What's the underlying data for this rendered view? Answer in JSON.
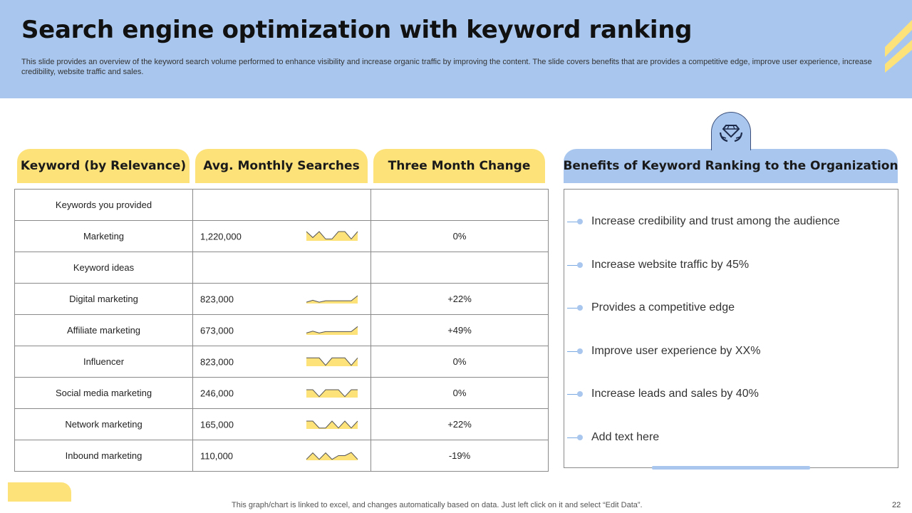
{
  "slide": {
    "title": "Search engine optimization with keyword ranking",
    "subtitle": "This slide provides an overview of the keyword search volume performed to enhance visibility and increase organic traffic by improving the content. The slide covers benefits that are provides a competitive edge, improve user experience, increase credibility, website traffic and sales.",
    "footer": "This graph/chart is linked to excel,  and changes automatically based on data. Just left click on it and select “Edit Data”.",
    "page_number": "22"
  },
  "colors": {
    "header_bg": "#a9c7ee",
    "accent_yellow": "#fde27a",
    "sparkline_fill": "#fde27a"
  },
  "table": {
    "headers": [
      "Keyword (by Relevance)",
      "Avg. Monthly Searches",
      "Three Month Change"
    ],
    "rows": [
      {
        "keyword": "Keywords you provided",
        "searches": "",
        "change": ""
      },
      {
        "keyword": "Marketing",
        "searches": "1,220,000",
        "change": "0%",
        "trend": [
          1,
          0.35,
          1,
          0.2,
          0.2,
          1,
          1,
          0.2,
          1
        ]
      },
      {
        "keyword": "Keyword ideas",
        "searches": "",
        "change": ""
      },
      {
        "keyword": "Digital marketing",
        "searches": "823,000",
        "change": "+22%",
        "trend": [
          0.15,
          0.35,
          0.15,
          0.3,
          0.3,
          0.3,
          0.3,
          0.3,
          0.85
        ]
      },
      {
        "keyword": "Affiliate marketing",
        "searches": "673,000",
        "change": "+49%",
        "trend": [
          0.2,
          0.4,
          0.2,
          0.35,
          0.35,
          0.35,
          0.35,
          0.35,
          0.9
        ]
      },
      {
        "keyword": "Influencer",
        "searches": "823,000",
        "change": "0%",
        "trend": [
          0.9,
          0.9,
          0.9,
          0.1,
          0.9,
          0.9,
          0.9,
          0.1,
          0.9
        ]
      },
      {
        "keyword": "Social media marketing",
        "searches": "246,000",
        "change": "0%",
        "trend": [
          0.85,
          0.85,
          0.1,
          0.85,
          0.85,
          0.85,
          0.1,
          0.85,
          0.85
        ]
      },
      {
        "keyword": "Network marketing",
        "searches": "165,000",
        "change": "+22%",
        "trend": [
          0.85,
          0.85,
          0.1,
          0.1,
          0.85,
          0.1,
          0.85,
          0.1,
          0.85
        ]
      },
      {
        "keyword": "Inbound marketing",
        "searches": "110,000",
        "change": "-19%",
        "trend": [
          0.1,
          0.8,
          0.1,
          0.8,
          0.1,
          0.5,
          0.5,
          0.85,
          0.1
        ]
      }
    ]
  },
  "benefits": {
    "heading": "Benefits of Keyword Ranking to the Organization",
    "icon": "diamond-in-hands-icon",
    "items": [
      "Increase  credibility and trust  among the audience",
      "Increase  website traffic by 45%",
      "Provides a competitive edge",
      "Improve  user experience by XX%",
      "Increase  leads and sales by 40%",
      "Add text here"
    ]
  }
}
